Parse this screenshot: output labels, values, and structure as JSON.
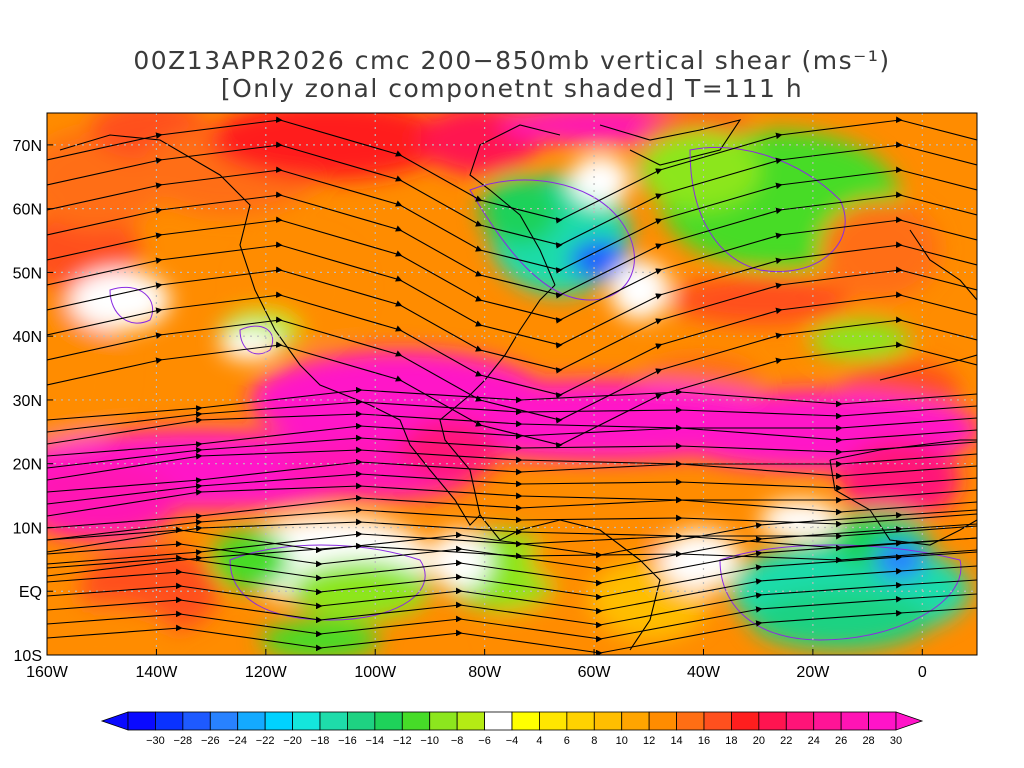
{
  "title": {
    "line1": "00Z13APR2026 cmc 200−850mb vertical shear (ms⁻¹)",
    "line2": "[Only zonal componetnt shaded] T=111 h"
  },
  "lat_labels": [
    "70N",
    "60N",
    "50N",
    "40N",
    "30N",
    "20N",
    "10N",
    "EQ",
    "10S"
  ],
  "lon_labels": [
    "160W",
    "140W",
    "120W",
    "100W",
    "80W",
    "60W",
    "40W",
    "20W",
    "0"
  ],
  "colorbar": {
    "ticks": [
      "−30",
      "−28",
      "−26",
      "−24",
      "−22",
      "−20",
      "−18",
      "−16",
      "−14",
      "−12",
      "−10",
      "−8",
      "−6",
      "−4",
      "4",
      "6",
      "8",
      "10",
      "12",
      "14",
      "16",
      "18",
      "20",
      "22",
      "24",
      "26",
      "28",
      "30"
    ],
    "colors": [
      "#0a0aff",
      "#0a32ff",
      "#1e5aff",
      "#2882ff",
      "#14aaff",
      "#00d2ff",
      "#14e6dc",
      "#1edcaa",
      "#1ed282",
      "#1ed25a",
      "#46dc28",
      "#8ce61e",
      "#b4eb14",
      "#ffffff",
      "#ffff00",
      "#ffe600",
      "#ffd200",
      "#ffbe00",
      "#ffa500",
      "#ff8c00",
      "#ff6e14",
      "#ff501e",
      "#ff1e1e",
      "#ff1450",
      "#ff1478",
      "#ff1496",
      "#ff14b4",
      "#ff14c8"
    ]
  }
}
